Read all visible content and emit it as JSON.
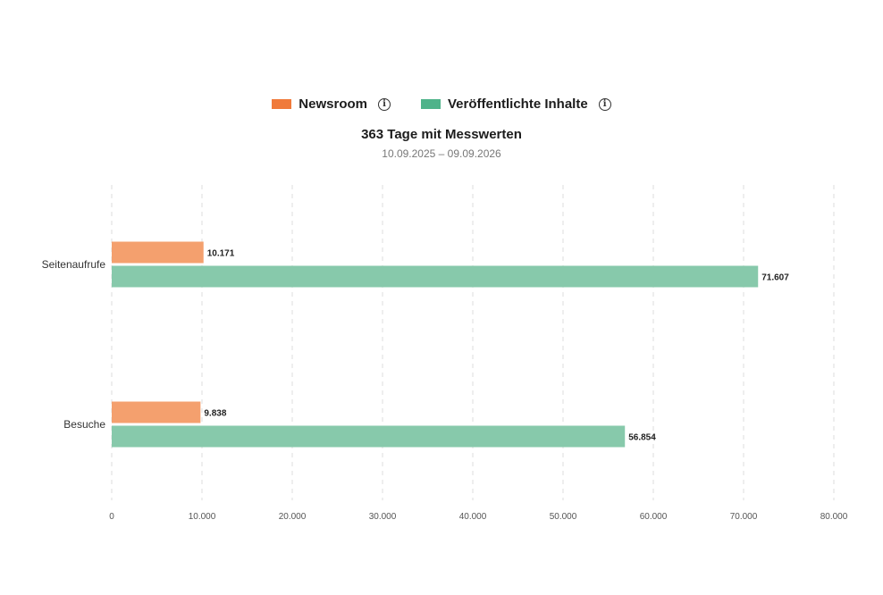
{
  "legend": [
    {
      "label": "Newsroom",
      "color": "#f07a3a",
      "icon": "info-icon"
    },
    {
      "label": "Veröffentlichte Inhalte",
      "color": "#4fb38a",
      "icon": "info-icon"
    }
  ],
  "chart_data": {
    "type": "bar",
    "orientation": "horizontal",
    "title": "363 Tage mit Messwerten",
    "subtitle": "10.09.2025 – 09.09.2026",
    "categories": [
      "Seitenaufrufe",
      "Besuche"
    ],
    "series": [
      {
        "name": "Newsroom",
        "values": [
          10171,
          9838
        ],
        "value_labels": [
          "10.171",
          "9.838"
        ],
        "color": "#f4a06e"
      },
      {
        "name": "Veröffentlichte Inhalte",
        "values": [
          71607,
          56854
        ],
        "value_labels": [
          "71.607",
          "56.854"
        ],
        "color": "#87c9ab"
      }
    ],
    "xlim": [
      0,
      80000
    ],
    "ticks": [
      0,
      10000,
      20000,
      30000,
      40000,
      50000,
      60000,
      70000,
      80000
    ],
    "tick_labels": [
      "0",
      "10.000",
      "20.000",
      "30.000",
      "40.000",
      "50.000",
      "60.000",
      "70.000",
      "80.000"
    ],
    "grid": "vertical-dashed",
    "legend_position": "top-center"
  }
}
